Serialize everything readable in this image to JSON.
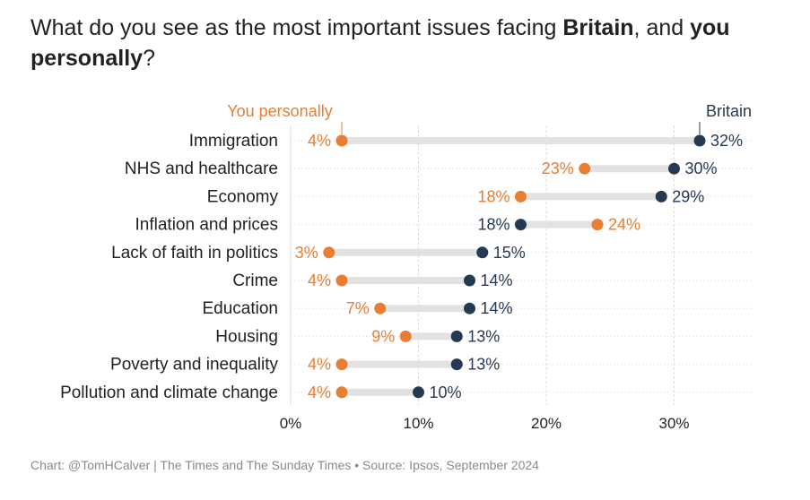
{
  "title": {
    "part1": "What do you see as the most important issues facing ",
    "bold1": "Britain",
    "part2": ", and ",
    "bold2": "you personally",
    "part3": "?"
  },
  "footer": "Chart: @TomHCalver | The Times and The Sunday Times • Source: Ipsos, September 2024",
  "colors": {
    "britain": "#253a52",
    "personally": "#e67e33",
    "connector": "#e2e2e2",
    "grid": "#dddddd",
    "text": "#222222"
  },
  "chart_data": {
    "type": "dot-plot",
    "xlim": [
      0,
      35
    ],
    "ticks": [
      0,
      10,
      20,
      30
    ],
    "tick_labels": [
      "0%",
      "10%",
      "20%",
      "30%"
    ],
    "series": [
      {
        "name": "You personally",
        "color": "#e67e33",
        "values": [
          4,
          23,
          18,
          24,
          3,
          4,
          7,
          9,
          4,
          4
        ]
      },
      {
        "name": "Britain",
        "color": "#253a52",
        "values": [
          32,
          30,
          29,
          18,
          15,
          14,
          14,
          13,
          13,
          10
        ]
      }
    ],
    "categories": [
      "Immigration",
      "NHS and healthcare",
      "Economy",
      "Inflation and prices",
      "Lack of faith in politics",
      "Crime",
      "Education",
      "Housing",
      "Poverty and inequality",
      "Pollution and climate change"
    ],
    "value_labels": {
      "personally": [
        "4%",
        "23%",
        "18%",
        "24%",
        "3%",
        "4%",
        "7%",
        "9%",
        "4%",
        "4%"
      ],
      "britain": [
        "32%",
        "30%",
        "29%",
        "18%",
        "15%",
        "14%",
        "14%",
        "13%",
        "13%",
        "10%"
      ]
    }
  }
}
